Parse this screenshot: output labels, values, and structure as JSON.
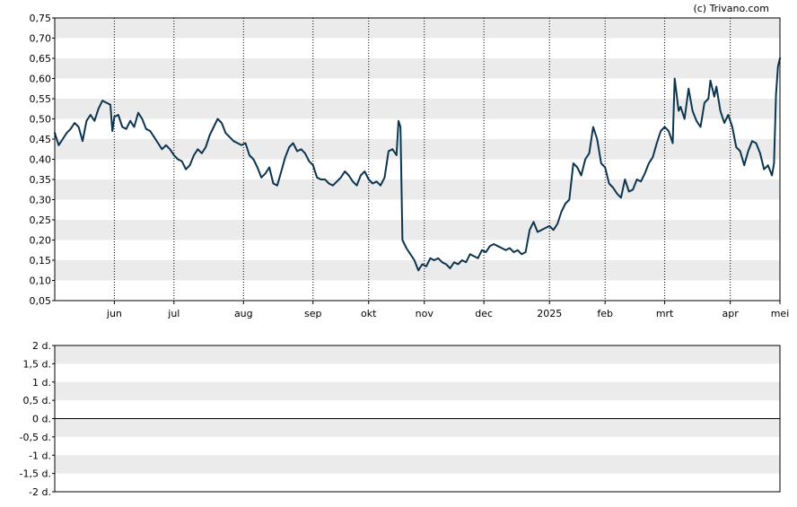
{
  "credit": "(c) Trivano.com",
  "colors": {
    "line": "#0c3550",
    "band": "#ebebeb",
    "background": "#ffffff",
    "axis": "#000000",
    "month_gridline": "#000000"
  },
  "chart_data": [
    {
      "type": "line",
      "title": "",
      "xlabel": "",
      "ylabel": "",
      "ylim": [
        0.05,
        0.75
      ],
      "y_ticks": [
        "0,75",
        "0,70",
        "0,65",
        "0,60",
        "0,55",
        "0,50",
        "0,45",
        "0,40",
        "0,35",
        "0,30",
        "0,25",
        "0,20",
        "0,15",
        "0,10",
        "0,05"
      ],
      "x_range": [
        "2024-05-02",
        "2025-05-02"
      ],
      "x_ticks": [
        {
          "label": "jun",
          "date": "2024-06-01"
        },
        {
          "label": "jul",
          "date": "2024-07-01"
        },
        {
          "label": "aug",
          "date": "2024-08-05"
        },
        {
          "label": "sep",
          "date": "2024-09-09"
        },
        {
          "label": "okt",
          "date": "2024-10-07"
        },
        {
          "label": "nov",
          "date": "2024-11-04"
        },
        {
          "label": "dec",
          "date": "2024-12-04"
        },
        {
          "label": "2025",
          "date": "2025-01-06"
        },
        {
          "label": "feb",
          "date": "2025-02-03"
        },
        {
          "label": "mrt",
          "date": "2025-03-05"
        },
        {
          "label": "apr",
          "date": "2025-04-07"
        },
        {
          "label": "mei",
          "date": "2025-05-02"
        }
      ],
      "grid": "alternating horizontal bands, dotted vertical month lines",
      "series": [
        {
          "color": "#0c3550",
          "points": [
            [
              "2024-05-02",
              0.465
            ],
            [
              "2024-05-04",
              0.435
            ],
            [
              "2024-05-06",
              0.45
            ],
            [
              "2024-05-08",
              0.465
            ],
            [
              "2024-05-10",
              0.475
            ],
            [
              "2024-05-12",
              0.49
            ],
            [
              "2024-05-14",
              0.48
            ],
            [
              "2024-05-16",
              0.445
            ],
            [
              "2024-05-18",
              0.495
            ],
            [
              "2024-05-20",
              0.51
            ],
            [
              "2024-05-22",
              0.495
            ],
            [
              "2024-05-24",
              0.525
            ],
            [
              "2024-05-26",
              0.545
            ],
            [
              "2024-05-28",
              0.54
            ],
            [
              "2024-05-30",
              0.535
            ],
            [
              "2024-05-31",
              0.47
            ],
            [
              "2024-06-01",
              0.505
            ],
            [
              "2024-06-03",
              0.51
            ],
            [
              "2024-06-05",
              0.48
            ],
            [
              "2024-06-07",
              0.475
            ],
            [
              "2024-06-09",
              0.495
            ],
            [
              "2024-06-11",
              0.48
            ],
            [
              "2024-06-13",
              0.515
            ],
            [
              "2024-06-15",
              0.5
            ],
            [
              "2024-06-17",
              0.475
            ],
            [
              "2024-06-19",
              0.47
            ],
            [
              "2024-06-21",
              0.455
            ],
            [
              "2024-06-23",
              0.44
            ],
            [
              "2024-06-25",
              0.425
            ],
            [
              "2024-06-27",
              0.435
            ],
            [
              "2024-06-29",
              0.425
            ],
            [
              "2024-07-01",
              0.41
            ],
            [
              "2024-07-03",
              0.4
            ],
            [
              "2024-07-05",
              0.395
            ],
            [
              "2024-07-07",
              0.375
            ],
            [
              "2024-07-09",
              0.385
            ],
            [
              "2024-07-11",
              0.41
            ],
            [
              "2024-07-13",
              0.425
            ],
            [
              "2024-07-15",
              0.415
            ],
            [
              "2024-07-17",
              0.43
            ],
            [
              "2024-07-19",
              0.46
            ],
            [
              "2024-07-21",
              0.48
            ],
            [
              "2024-07-23",
              0.5
            ],
            [
              "2024-07-25",
              0.49
            ],
            [
              "2024-07-27",
              0.465
            ],
            [
              "2024-07-29",
              0.455
            ],
            [
              "2024-07-31",
              0.445
            ],
            [
              "2024-08-02",
              0.44
            ],
            [
              "2024-08-04",
              0.435
            ],
            [
              "2024-08-06",
              0.44
            ],
            [
              "2024-08-08",
              0.41
            ],
            [
              "2024-08-10",
              0.4
            ],
            [
              "2024-08-12",
              0.38
            ],
            [
              "2024-08-14",
              0.355
            ],
            [
              "2024-08-16",
              0.365
            ],
            [
              "2024-08-18",
              0.38
            ],
            [
              "2024-08-20",
              0.34
            ],
            [
              "2024-08-22",
              0.335
            ],
            [
              "2024-08-24",
              0.37
            ],
            [
              "2024-08-26",
              0.405
            ],
            [
              "2024-08-28",
              0.43
            ],
            [
              "2024-08-30",
              0.44
            ],
            [
              "2024-09-01",
              0.42
            ],
            [
              "2024-09-03",
              0.425
            ],
            [
              "2024-09-05",
              0.415
            ],
            [
              "2024-09-07",
              0.395
            ],
            [
              "2024-09-09",
              0.385
            ],
            [
              "2024-09-11",
              0.355
            ],
            [
              "2024-09-13",
              0.35
            ],
            [
              "2024-09-15",
              0.35
            ],
            [
              "2024-09-17",
              0.34
            ],
            [
              "2024-09-19",
              0.335
            ],
            [
              "2024-09-21",
              0.345
            ],
            [
              "2024-09-23",
              0.355
            ],
            [
              "2024-09-25",
              0.37
            ],
            [
              "2024-09-27",
              0.36
            ],
            [
              "2024-09-29",
              0.345
            ],
            [
              "2024-10-01",
              0.335
            ],
            [
              "2024-10-03",
              0.36
            ],
            [
              "2024-10-05",
              0.37
            ],
            [
              "2024-10-07",
              0.35
            ],
            [
              "2024-10-09",
              0.34
            ],
            [
              "2024-10-11",
              0.345
            ],
            [
              "2024-10-13",
              0.335
            ],
            [
              "2024-10-15",
              0.355
            ],
            [
              "2024-10-17",
              0.42
            ],
            [
              "2024-10-19",
              0.425
            ],
            [
              "2024-10-21",
              0.41
            ],
            [
              "2024-10-22",
              0.495
            ],
            [
              "2024-10-23",
              0.48
            ],
            [
              "2024-10-24",
              0.2
            ],
            [
              "2024-10-26",
              0.18
            ],
            [
              "2024-10-28",
              0.165
            ],
            [
              "2024-10-30",
              0.15
            ],
            [
              "2024-11-01",
              0.125
            ],
            [
              "2024-11-03",
              0.14
            ],
            [
              "2024-11-05",
              0.135
            ],
            [
              "2024-11-07",
              0.155
            ],
            [
              "2024-11-09",
              0.15
            ],
            [
              "2024-11-11",
              0.155
            ],
            [
              "2024-11-13",
              0.145
            ],
            [
              "2024-11-15",
              0.14
            ],
            [
              "2024-11-17",
              0.13
            ],
            [
              "2024-11-19",
              0.145
            ],
            [
              "2024-11-21",
              0.14
            ],
            [
              "2024-11-23",
              0.15
            ],
            [
              "2024-11-25",
              0.145
            ],
            [
              "2024-11-27",
              0.165
            ],
            [
              "2024-11-29",
              0.16
            ],
            [
              "2024-12-01",
              0.155
            ],
            [
              "2024-12-03",
              0.175
            ],
            [
              "2024-12-05",
              0.17
            ],
            [
              "2024-12-07",
              0.185
            ],
            [
              "2024-12-09",
              0.19
            ],
            [
              "2024-12-11",
              0.185
            ],
            [
              "2024-12-13",
              0.18
            ],
            [
              "2024-12-15",
              0.175
            ],
            [
              "2024-12-17",
              0.18
            ],
            [
              "2024-12-19",
              0.17
            ],
            [
              "2024-12-21",
              0.175
            ],
            [
              "2024-12-23",
              0.165
            ],
            [
              "2024-12-25",
              0.17
            ],
            [
              "2024-12-27",
              0.225
            ],
            [
              "2024-12-29",
              0.245
            ],
            [
              "2024-12-31",
              0.22
            ],
            [
              "2025-01-02",
              0.225
            ],
            [
              "2025-01-04",
              0.23
            ],
            [
              "2025-01-06",
              0.235
            ],
            [
              "2025-01-08",
              0.225
            ],
            [
              "2025-01-10",
              0.24
            ],
            [
              "2025-01-12",
              0.27
            ],
            [
              "2025-01-14",
              0.29
            ],
            [
              "2025-01-16",
              0.3
            ],
            [
              "2025-01-18",
              0.39
            ],
            [
              "2025-01-20",
              0.38
            ],
            [
              "2025-01-22",
              0.36
            ],
            [
              "2025-01-24",
              0.4
            ],
            [
              "2025-01-26",
              0.415
            ],
            [
              "2025-01-28",
              0.48
            ],
            [
              "2025-01-30",
              0.45
            ],
            [
              "2025-02-01",
              0.39
            ],
            [
              "2025-02-03",
              0.38
            ],
            [
              "2025-02-05",
              0.34
            ],
            [
              "2025-02-07",
              0.33
            ],
            [
              "2025-02-09",
              0.315
            ],
            [
              "2025-02-11",
              0.305
            ],
            [
              "2025-02-13",
              0.35
            ],
            [
              "2025-02-15",
              0.32
            ],
            [
              "2025-02-17",
              0.325
            ],
            [
              "2025-02-19",
              0.35
            ],
            [
              "2025-02-21",
              0.345
            ],
            [
              "2025-02-23",
              0.365
            ],
            [
              "2025-02-25",
              0.39
            ],
            [
              "2025-02-27",
              0.405
            ],
            [
              "2025-03-01",
              0.44
            ],
            [
              "2025-03-03",
              0.47
            ],
            [
              "2025-03-05",
              0.48
            ],
            [
              "2025-03-07",
              0.47
            ],
            [
              "2025-03-09",
              0.44
            ],
            [
              "2025-03-10",
              0.6
            ],
            [
              "2025-03-12",
              0.52
            ],
            [
              "2025-03-13",
              0.53
            ],
            [
              "2025-03-15",
              0.5
            ],
            [
              "2025-03-17",
              0.575
            ],
            [
              "2025-03-19",
              0.52
            ],
            [
              "2025-03-21",
              0.495
            ],
            [
              "2025-03-23",
              0.48
            ],
            [
              "2025-03-25",
              0.54
            ],
            [
              "2025-03-27",
              0.55
            ],
            [
              "2025-03-28",
              0.595
            ],
            [
              "2025-03-30",
              0.555
            ],
            [
              "2025-03-31",
              0.58
            ],
            [
              "2025-04-02",
              0.52
            ],
            [
              "2025-04-04",
              0.49
            ],
            [
              "2025-04-06",
              0.51
            ],
            [
              "2025-04-08",
              0.48
            ],
            [
              "2025-04-10",
              0.43
            ],
            [
              "2025-04-12",
              0.42
            ],
            [
              "2025-04-14",
              0.385
            ],
            [
              "2025-04-16",
              0.42
            ],
            [
              "2025-04-18",
              0.445
            ],
            [
              "2025-04-20",
              0.44
            ],
            [
              "2025-04-22",
              0.415
            ],
            [
              "2025-04-24",
              0.375
            ],
            [
              "2025-04-26",
              0.385
            ],
            [
              "2025-04-28",
              0.36
            ],
            [
              "2025-04-29",
              0.39
            ],
            [
              "2025-04-30",
              0.56
            ],
            [
              "2025-05-01",
              0.63
            ],
            [
              "2025-05-02",
              0.65
            ]
          ]
        }
      ]
    },
    {
      "type": "line",
      "title": "",
      "xlabel": "",
      "ylabel": "",
      "ylim": [
        -2,
        2
      ],
      "y_ticks": [
        "2 d.",
        "1,5 d.",
        "1 d.",
        "0,5 d.",
        "0 d.",
        "-0,5 d.",
        "-1 d.",
        "-1,5 d.",
        "-2 d."
      ],
      "grid": "alternating horizontal bands, baseline at 0",
      "series": []
    }
  ]
}
